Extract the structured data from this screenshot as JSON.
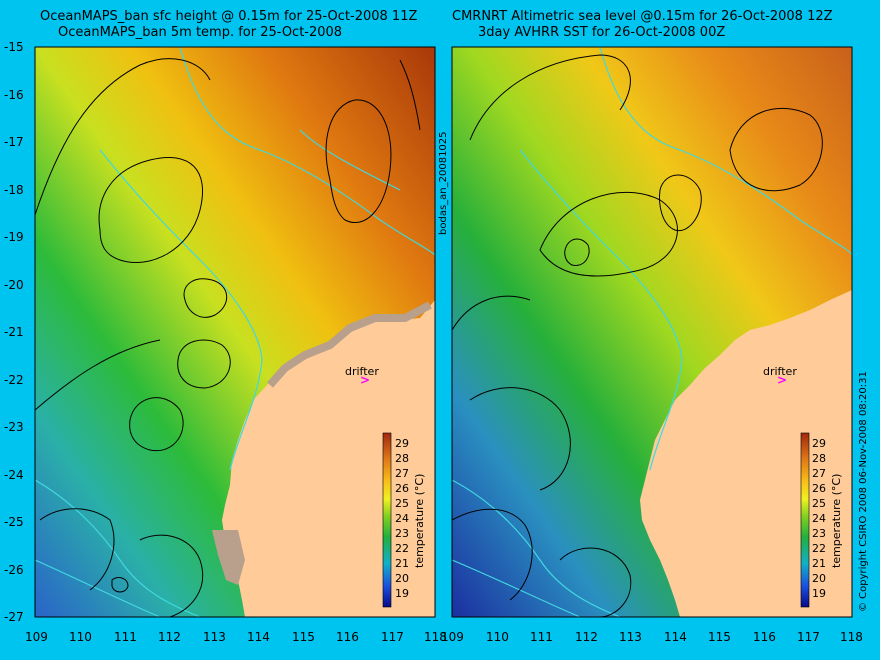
{
  "left_panel": {
    "title_line1": "OceanMAPS_ban sfc height @ 0.15m for 25-Oct-2008 11Z",
    "title_line2": "OceanMAPS_ban 5m temp. for 25-Oct-2008"
  },
  "right_panel": {
    "title_line1": "CMRNRT Altimetric sea level  @0.15m  for 26-Oct-2008 12Z",
    "title_line2": "3day AVHRR SST for 26-Oct-2008 00Z"
  },
  "side_label_middle": "bodas_an_20081025",
  "side_label_right": "© Copyright CSIRO 2008   06-Nov-2008 08:20:31",
  "drifter_label": "drifter",
  "colorbar": {
    "label": "temperature (°C)",
    "ticks": [
      "29",
      "28",
      "27",
      "26",
      "25",
      "24",
      "23",
      "22",
      "21",
      "20",
      "19"
    ]
  },
  "axes": {
    "lat_labels": [
      "-15",
      "-16",
      "-17",
      "-18",
      "-19",
      "-20",
      "-21",
      "-22",
      "-23",
      "-24",
      "-25",
      "-26",
      "-27"
    ],
    "lon_labels": [
      "109",
      "110",
      "111",
      "112",
      "113",
      "114",
      "115",
      "116",
      "117",
      "118"
    ]
  },
  "colors": {
    "background": "#00c4f0",
    "land": "#ffcc99",
    "coast_model": "#b8a08c",
    "contour_cyan": "#40d8e0",
    "drifter": "#ff00ff"
  }
}
